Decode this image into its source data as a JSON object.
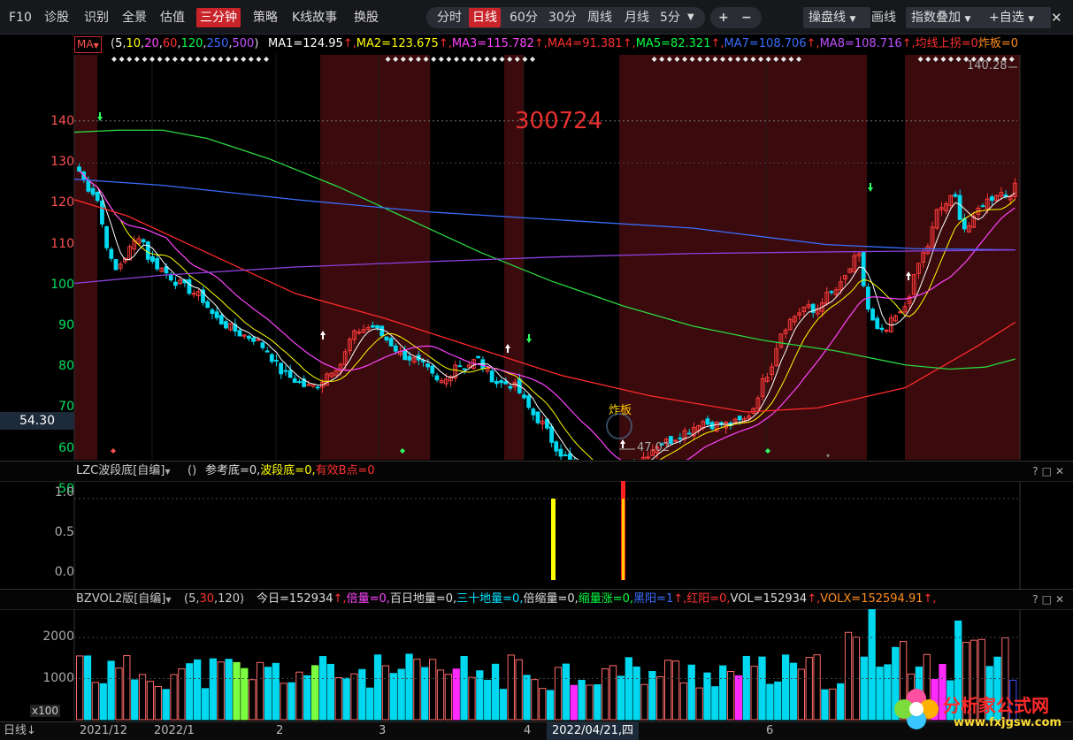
{
  "toolbar": {
    "left_items": [
      "F10",
      "诊股",
      "识别",
      "全景",
      "估值",
      "三分钟",
      "策略",
      "K线故事",
      "换股"
    ],
    "active_left": "三分钟",
    "periods": [
      "分时",
      "日线",
      "60分",
      "30分",
      "周线",
      "月线",
      "5分"
    ],
    "active_period": "日线",
    "zoom_in": "+",
    "zoom_out": "−",
    "right_items": [
      "操盘线",
      "画线",
      "指数叠加",
      "+自选"
    ],
    "close": "✕"
  },
  "ma_line": {
    "button": "MA",
    "params_open": "(",
    "params": [
      {
        "v": "5",
        "color": "#ffffff"
      },
      {
        "v": "10",
        "color": "#ffff00"
      },
      {
        "v": "20",
        "color": "#ff44ff"
      },
      {
        "v": "60",
        "color": "#ff3030"
      },
      {
        "v": "120",
        "color": "#00ff44"
      },
      {
        "v": "250",
        "color": "#3a6dff"
      },
      {
        "v": "500",
        "color": "#c050ff"
      }
    ],
    "params_close": ")",
    "values": [
      {
        "text": "MA1=124.95",
        "color": "#ffffff"
      },
      {
        "text": "MA2=123.675",
        "color": "#ffff00"
      },
      {
        "text": "MA3=115.782",
        "color": "#ff44ff"
      },
      {
        "text": "MA4=91.381",
        "color": "#ff3030"
      },
      {
        "text": "MA5=82.321",
        "color": "#00ff44"
      },
      {
        "text": "MA7=108.706",
        "color": "#3a6dff"
      },
      {
        "text": "MA8=108.716",
        "color": "#c050ff"
      },
      {
        "text": "均线上拐=0",
        "color": "#ff3030"
      },
      {
        "text": "炸板=0",
        "color": "#ff8c1a"
      }
    ],
    "up_arrow": "↑"
  },
  "main_chart": {
    "stock_code": "300724",
    "current_price_tag": "54.30",
    "high_label": "140.28",
    "low_label": "47.02",
    "annotation": "炸板",
    "y_ticks": [
      "140",
      "130",
      "120",
      "110",
      "100",
      "90",
      "80",
      "70",
      "60",
      "50"
    ],
    "y_tick_values": [
      140,
      130,
      120,
      110,
      100,
      90,
      80,
      70,
      60,
      50
    ]
  },
  "panel1": {
    "title": "LZC波段底[自编]",
    "paren": "()",
    "items": [
      {
        "text": "参考底=0,",
        "color": "#dddddd"
      },
      {
        "text": "波段底=0,",
        "color": "#ffff00"
      },
      {
        "text": "有效B点=0",
        "color": "#ff3030"
      }
    ],
    "y_ticks": [
      "1.0",
      "0.5",
      "0.0"
    ]
  },
  "panel2": {
    "title": "BZVOL2版[自编]",
    "params_open": "(5,",
    "param_red": "30",
    "params_close": ",120)",
    "items": [
      {
        "text": "今日=152934",
        "color": "#dddddd",
        "arrow": true
      },
      {
        "text": "倍量=0,",
        "color": "#ff44ff"
      },
      {
        "text": "百日地量=0,",
        "color": "#dddddd"
      },
      {
        "text": "三十地量=0,",
        "color": "#00e5ff"
      },
      {
        "text": "倍缩量=0,",
        "color": "#dddddd"
      },
      {
        "text": "缩量涨=0,",
        "color": "#00ff44"
      },
      {
        "text": "黑阳=1",
        "color": "#3a6dff",
        "arrow": true
      },
      {
        "text": "红阳=0,",
        "color": "#ff3030"
      },
      {
        "text": "VOL=152934",
        "color": "#dddddd",
        "arrow": true
      },
      {
        "text": "VOLX=152594.91",
        "color": "#ff8c1a",
        "arrow": true
      }
    ],
    "y_ticks": [
      "2000",
      "1000"
    ],
    "unit": "x100"
  },
  "date_bar": {
    "mode": "日线",
    "dates": [
      "2021/12",
      "2022/1",
      "2",
      "3",
      "4",
      "2022/04/21,四",
      "6"
    ]
  },
  "watermark": {
    "text": "分析家公式网",
    "url": "www.fxjgsw.com"
  }
}
